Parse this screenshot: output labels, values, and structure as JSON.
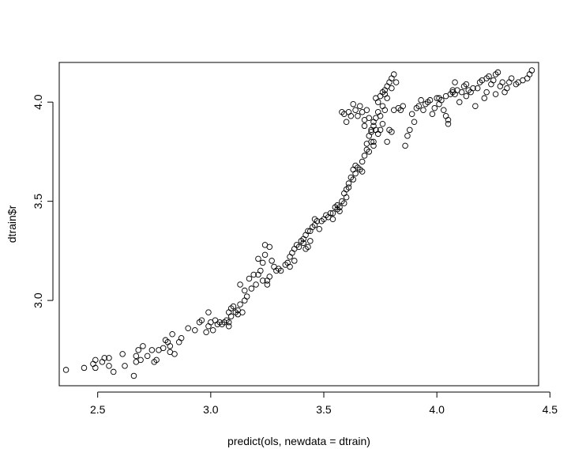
{
  "chart_data": {
    "type": "scatter",
    "title": "",
    "xlabel": "predict(ols, newdata = dtrain)",
    "ylabel": "dtrain$r",
    "xlim": [
      2.33,
      4.45
    ],
    "ylim": [
      2.57,
      4.2
    ],
    "x_ticks": [
      2.5,
      3.0,
      3.5,
      4.0,
      4.5
    ],
    "x_tick_labels": [
      "2.5",
      "3.0",
      "3.5",
      "4.0",
      "4.5"
    ],
    "y_ticks": [
      3.0,
      3.5,
      4.0
    ],
    "y_tick_labels": [
      "3.0",
      "3.5",
      "4.0"
    ],
    "grid": false,
    "marker": "open-circle",
    "series": [
      {
        "points": [
          [
            2.36,
            2.65
          ],
          [
            2.44,
            2.66
          ],
          [
            2.48,
            2.68
          ],
          [
            2.49,
            2.7
          ],
          [
            2.49,
            2.66
          ],
          [
            2.52,
            2.69
          ],
          [
            2.53,
            2.71
          ],
          [
            2.55,
            2.71
          ],
          [
            2.57,
            2.64
          ],
          [
            2.55,
            2.67
          ],
          [
            2.61,
            2.73
          ],
          [
            2.62,
            2.67
          ],
          [
            2.66,
            2.62
          ],
          [
            2.67,
            2.69
          ],
          [
            2.67,
            2.72
          ],
          [
            2.68,
            2.75
          ],
          [
            2.69,
            2.7
          ],
          [
            2.7,
            2.77
          ],
          [
            2.72,
            2.72
          ],
          [
            2.74,
            2.75
          ],
          [
            2.75,
            2.69
          ],
          [
            2.76,
            2.7
          ],
          [
            2.77,
            2.75
          ],
          [
            2.79,
            2.76
          ],
          [
            2.8,
            2.8
          ],
          [
            2.81,
            2.79
          ],
          [
            2.82,
            2.74
          ],
          [
            2.82,
            2.77
          ],
          [
            2.83,
            2.83
          ],
          [
            2.84,
            2.73
          ],
          [
            2.86,
            2.79
          ],
          [
            2.87,
            2.81
          ],
          [
            2.9,
            2.86
          ],
          [
            2.93,
            2.85
          ],
          [
            2.95,
            2.89
          ],
          [
            2.96,
            2.9
          ],
          [
            2.98,
            2.84
          ],
          [
            2.99,
            2.87
          ],
          [
            2.99,
            2.94
          ],
          [
            3.0,
            2.89
          ],
          [
            3.01,
            2.85
          ],
          [
            3.02,
            2.9
          ],
          [
            3.03,
            2.88
          ],
          [
            3.04,
            2.89
          ],
          [
            3.05,
            2.88
          ],
          [
            3.06,
            2.89
          ],
          [
            3.07,
            2.9
          ],
          [
            3.08,
            2.87
          ],
          [
            3.08,
            2.94
          ],
          [
            3.08,
            2.89
          ],
          [
            3.09,
            2.96
          ],
          [
            3.09,
            2.92
          ],
          [
            3.1,
            2.97
          ],
          [
            3.11,
            2.94
          ],
          [
            3.12,
            2.95
          ],
          [
            3.13,
            2.98
          ],
          [
            3.12,
            2.93
          ],
          [
            3.13,
            3.08
          ],
          [
            3.14,
            2.94
          ],
          [
            3.15,
            3.0
          ],
          [
            3.15,
            3.05
          ],
          [
            3.16,
            3.02
          ],
          [
            3.17,
            3.11
          ],
          [
            3.18,
            3.06
          ],
          [
            3.19,
            3.13
          ],
          [
            3.2,
            3.08
          ],
          [
            3.21,
            3.13
          ],
          [
            3.22,
            3.15
          ],
          [
            3.21,
            3.21
          ],
          [
            3.23,
            3.19
          ],
          [
            3.23,
            3.1
          ],
          [
            3.24,
            3.23
          ],
          [
            3.24,
            3.28
          ],
          [
            3.25,
            3.1
          ],
          [
            3.25,
            3.08
          ],
          [
            3.26,
            3.27
          ],
          [
            3.26,
            3.12
          ],
          [
            3.27,
            3.2
          ],
          [
            3.28,
            3.17
          ],
          [
            3.29,
            3.15
          ],
          [
            3.3,
            3.16
          ],
          [
            3.31,
            3.15
          ],
          [
            3.33,
            3.18
          ],
          [
            3.34,
            3.19
          ],
          [
            3.35,
            3.17
          ],
          [
            3.35,
            3.22
          ],
          [
            3.36,
            3.24
          ],
          [
            3.37,
            3.26
          ],
          [
            3.37,
            3.2
          ],
          [
            3.38,
            3.28
          ],
          [
            3.39,
            3.27
          ],
          [
            3.4,
            3.3
          ],
          [
            3.41,
            3.31
          ],
          [
            3.41,
            3.29
          ],
          [
            3.42,
            3.33
          ],
          [
            3.42,
            3.26
          ],
          [
            3.43,
            3.27
          ],
          [
            3.43,
            3.35
          ],
          [
            3.44,
            3.35
          ],
          [
            3.44,
            3.3
          ],
          [
            3.45,
            3.37
          ],
          [
            3.46,
            3.38
          ],
          [
            3.46,
            3.41
          ],
          [
            3.47,
            3.4
          ],
          [
            3.48,
            3.36
          ],
          [
            3.49,
            3.4
          ],
          [
            3.5,
            3.41
          ],
          [
            3.51,
            3.43
          ],
          [
            3.52,
            3.42
          ],
          [
            3.53,
            3.44
          ],
          [
            3.54,
            3.44
          ],
          [
            3.54,
            3.41
          ],
          [
            3.55,
            3.47
          ],
          [
            3.56,
            3.46
          ],
          [
            3.56,
            3.48
          ],
          [
            3.57,
            3.47
          ],
          [
            3.57,
            3.45
          ],
          [
            3.58,
            3.5
          ],
          [
            3.59,
            3.49
          ],
          [
            3.59,
            3.54
          ],
          [
            3.6,
            3.56
          ],
          [
            3.6,
            3.52
          ],
          [
            3.61,
            3.59
          ],
          [
            3.61,
            3.57
          ],
          [
            3.62,
            3.62
          ],
          [
            3.63,
            3.61
          ],
          [
            3.63,
            3.66
          ],
          [
            3.64,
            3.64
          ],
          [
            3.64,
            3.68
          ],
          [
            3.65,
            3.67
          ],
          [
            3.66,
            3.66
          ],
          [
            3.67,
            3.7
          ],
          [
            3.67,
            3.65
          ],
          [
            3.68,
            3.73
          ],
          [
            3.69,
            3.76
          ],
          [
            3.69,
            3.79
          ],
          [
            3.7,
            3.75
          ],
          [
            3.7,
            3.83
          ],
          [
            3.71,
            3.8
          ],
          [
            3.71,
            3.85
          ],
          [
            3.72,
            3.88
          ],
          [
            3.72,
            3.9
          ],
          [
            3.72,
            3.78
          ],
          [
            3.73,
            3.92
          ],
          [
            3.73,
            3.86
          ],
          [
            3.74,
            3.95
          ],
          [
            3.74,
            4.0
          ],
          [
            3.75,
            3.93
          ],
          [
            3.75,
            4.03
          ],
          [
            3.76,
            4.05
          ],
          [
            3.76,
            3.98
          ],
          [
            3.77,
            4.06
          ],
          [
            3.77,
            3.96
          ],
          [
            3.78,
            4.08
          ],
          [
            3.78,
            4.02
          ],
          [
            3.79,
            4.1
          ],
          [
            3.79,
            3.86
          ],
          [
            3.8,
            4.12
          ],
          [
            3.8,
            4.07
          ],
          [
            3.81,
            4.14
          ],
          [
            3.81,
            3.96
          ],
          [
            3.82,
            4.1
          ],
          [
            3.78,
            3.8
          ],
          [
            3.76,
            3.89
          ],
          [
            3.74,
            3.84
          ],
          [
            3.72,
            3.8
          ],
          [
            3.71,
            3.86
          ],
          [
            3.7,
            3.92
          ],
          [
            3.69,
            3.96
          ],
          [
            3.68,
            3.88
          ],
          [
            3.67,
            3.95
          ],
          [
            3.66,
            3.98
          ],
          [
            3.65,
            3.93
          ],
          [
            3.64,
            3.96
          ],
          [
            3.63,
            3.99
          ],
          [
            3.62,
            3.93
          ],
          [
            3.61,
            3.95
          ],
          [
            3.6,
            3.9
          ],
          [
            3.59,
            3.94
          ],
          [
            3.58,
            3.95
          ],
          [
            3.68,
            3.91
          ],
          [
            3.73,
            4.02
          ],
          [
            3.77,
            4.04
          ],
          [
            3.75,
            3.86
          ],
          [
            3.8,
            3.85
          ],
          [
            3.83,
            3.97
          ],
          [
            3.84,
            3.96
          ],
          [
            3.85,
            3.98
          ],
          [
            3.86,
            3.78
          ],
          [
            3.87,
            3.83
          ],
          [
            3.88,
            3.86
          ],
          [
            3.89,
            3.94
          ],
          [
            3.9,
            3.9
          ],
          [
            3.91,
            3.97
          ],
          [
            3.92,
            3.98
          ],
          [
            3.93,
            4.01
          ],
          [
            3.94,
            3.96
          ],
          [
            3.95,
            3.99
          ],
          [
            3.96,
            4.0
          ],
          [
            3.97,
            4.01
          ],
          [
            3.98,
            3.94
          ],
          [
            3.99,
            3.97
          ],
          [
            4.0,
            4.02
          ],
          [
            4.01,
            4.02
          ],
          [
            4.02,
            4.01
          ],
          [
            4.03,
            3.96
          ],
          [
            4.04,
            4.03
          ],
          [
            4.04,
            3.93
          ],
          [
            4.05,
            3.91
          ],
          [
            4.05,
            3.89
          ],
          [
            4.06,
            4.04
          ],
          [
            4.07,
            4.05
          ],
          [
            4.08,
            4.1
          ],
          [
            4.08,
            4.04
          ],
          [
            4.09,
            4.06
          ],
          [
            4.1,
            4.0
          ],
          [
            4.11,
            4.05
          ],
          [
            4.12,
            4.08
          ],
          [
            4.13,
            4.03
          ],
          [
            4.14,
            4.06
          ],
          [
            4.15,
            4.05
          ],
          [
            4.16,
            4.07
          ],
          [
            4.17,
            3.98
          ],
          [
            4.18,
            4.07
          ],
          [
            4.19,
            4.1
          ],
          [
            4.2,
            4.11
          ],
          [
            4.21,
            4.02
          ],
          [
            4.22,
            4.05
          ],
          [
            4.23,
            4.13
          ],
          [
            4.24,
            4.09
          ],
          [
            4.25,
            4.11
          ],
          [
            4.26,
            4.14
          ],
          [
            4.27,
            4.15
          ],
          [
            4.28,
            4.08
          ],
          [
            4.29,
            4.1
          ],
          [
            4.3,
            4.05
          ],
          [
            4.31,
            4.07
          ],
          [
            4.32,
            4.1
          ],
          [
            4.33,
            4.12
          ],
          [
            4.35,
            4.09
          ],
          [
            4.36,
            4.1
          ],
          [
            4.38,
            4.11
          ],
          [
            4.4,
            4.12
          ],
          [
            4.41,
            4.14
          ],
          [
            4.42,
            4.16
          ],
          [
            4.07,
            4.06
          ],
          [
            4.13,
            4.09
          ],
          [
            4.22,
            4.12
          ],
          [
            4.26,
            4.04
          ],
          [
            4.01,
            3.99
          ]
        ]
      }
    ]
  }
}
